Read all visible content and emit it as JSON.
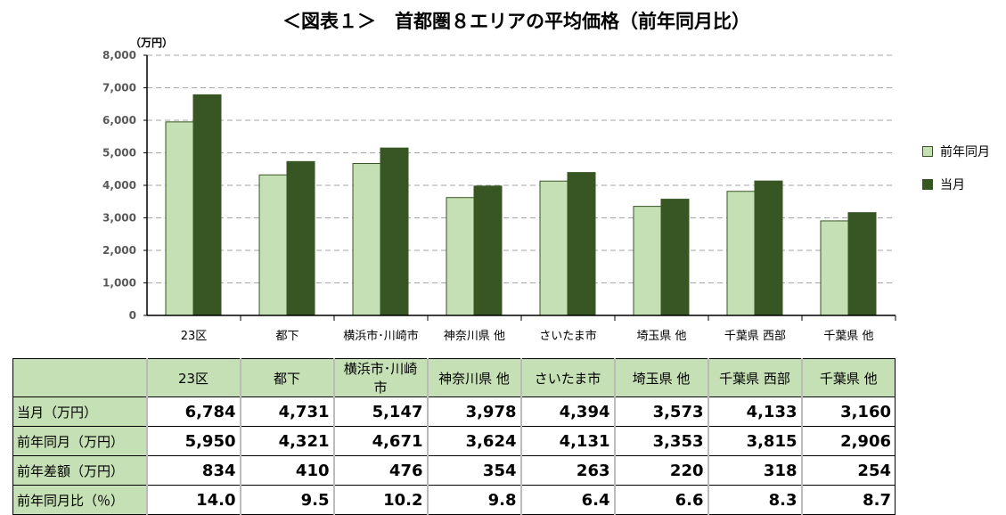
{
  "chart_data": {
    "type": "bar",
    "title": "＜図表１＞　首都圏８エリアの平均価格（前年同月比）",
    "ylabel": "（万円）",
    "ylim": [
      0,
      8000
    ],
    "yticks": [
      "0",
      "1,000",
      "2,000",
      "3,000",
      "4,000",
      "5,000",
      "6,000",
      "7,000",
      "8,000"
    ],
    "grid": true,
    "legend_position": "right",
    "categories": [
      "23区",
      "都下",
      "横浜市･川崎市",
      "神奈川県 他",
      "さいたま市",
      "埼玉県 他",
      "千葉県 西部",
      "千葉県 他"
    ],
    "series": [
      {
        "name": "前年同月",
        "color": "#c5e0b4",
        "values": [
          5950,
          4321,
          4671,
          3624,
          4131,
          3353,
          3815,
          2906
        ]
      },
      {
        "name": "当月",
        "color": "#375623",
        "values": [
          6784,
          4731,
          5147,
          3978,
          4394,
          3573,
          4133,
          3160
        ]
      }
    ]
  },
  "table": {
    "rows": [
      {
        "label": "当月（万円）",
        "values": [
          "6,784",
          "4,731",
          "5,147",
          "3,978",
          "4,394",
          "3,573",
          "4,133",
          "3,160"
        ]
      },
      {
        "label": "前年同月（万円）",
        "values": [
          "5,950",
          "4,321",
          "4,671",
          "3,624",
          "4,131",
          "3,353",
          "3,815",
          "2,906"
        ]
      },
      {
        "label": "前年差額（万円）",
        "values": [
          "834",
          "410",
          "476",
          "354",
          "263",
          "220",
          "318",
          "254"
        ]
      },
      {
        "label": "前年同月比（％）",
        "values": [
          "14.0",
          "9.5",
          "10.2",
          "9.8",
          "6.4",
          "6.6",
          "8.3",
          "8.7"
        ]
      }
    ]
  }
}
